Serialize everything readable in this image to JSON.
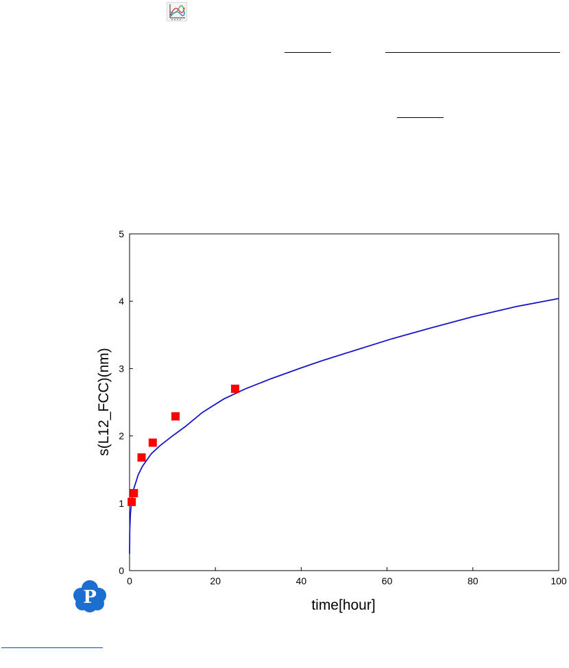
{
  "icons": {
    "toolbar": "plot-chart-icon",
    "logo": "cloud-p-logo-icon"
  },
  "colors": {
    "line_series": "#1414c8",
    "marker_series": "#ff0000",
    "logo": "#1a6fd1",
    "link": "#1f3dbd"
  },
  "chart_data": {
    "type": "line",
    "title": "",
    "xlabel": "time[hour]",
    "ylabel": "s(L12_FCC)(nm)",
    "xlim": [
      0,
      100
    ],
    "ylim": [
      0,
      5
    ],
    "xticks": [
      0,
      20,
      40,
      60,
      80,
      100
    ],
    "yticks": [
      0,
      1,
      2,
      3,
      4,
      5
    ],
    "grid": false,
    "legend": "none",
    "series": [
      {
        "kind": "line",
        "x": [
          0.0,
          0.05,
          0.2,
          0.5,
          1,
          2,
          3,
          5,
          7,
          10,
          13,
          17,
          22,
          27,
          33,
          40,
          45,
          53,
          61,
          70,
          80,
          90,
          100
        ],
        "y": [
          0.25,
          0.6,
          0.85,
          1.05,
          1.22,
          1.42,
          1.55,
          1.73,
          1.85,
          2.0,
          2.14,
          2.35,
          2.55,
          2.7,
          2.85,
          3.01,
          3.12,
          3.28,
          3.44,
          3.6,
          3.77,
          3.92,
          4.04
        ]
      },
      {
        "kind": "scatter",
        "marker": "square",
        "x": [
          0.5,
          1.0,
          2.8,
          5.4,
          10.7,
          24.6
        ],
        "y": [
          1.02,
          1.15,
          1.68,
          1.9,
          2.29,
          2.7
        ]
      }
    ]
  }
}
